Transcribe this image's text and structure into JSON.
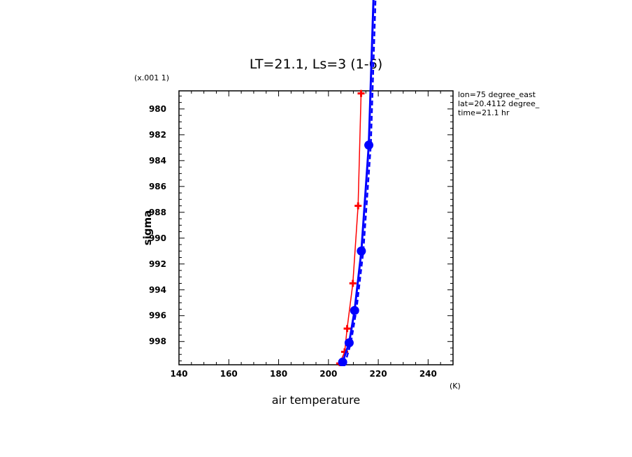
{
  "chart_data": {
    "type": "line",
    "title": "LT=21.1, Ls=3 (1-6)",
    "xlabel": "air temperature",
    "ylabel": "sigma",
    "x_unit": "(K)",
    "y_scale_label": "(x.001 1)",
    "xlim": [
      140,
      250
    ],
    "ylim": [
      999.8,
      978.6
    ],
    "y_inverted": true,
    "x_ticks": [
      140,
      160,
      180,
      200,
      220,
      240
    ],
    "y_ticks": [
      980,
      982,
      984,
      986,
      988,
      990,
      992,
      994,
      996,
      998
    ],
    "annotations": [
      "lon=75 degree_east",
      "lat=20.4112 degree_",
      "time=21.1 hr"
    ],
    "grid": false,
    "series": [
      {
        "color": "#ff0000",
        "line_style": "solid",
        "marker": "plus",
        "x": [
          204.5,
          206.5,
          207.5,
          209.8,
          211.9,
          213.1
        ],
        "y": [
          999.7,
          998.8,
          997.0,
          993.5,
          987.5,
          978.8
        ]
      },
      {
        "color": "#0000ff",
        "line_style": "solid",
        "marker": "circle",
        "x": [
          205.7,
          208.3,
          210.5,
          213.2,
          216.2,
          219.5
        ],
        "y": [
          999.6,
          998.1,
          995.6,
          991.0,
          982.8,
          963.0
        ]
      },
      {
        "color": "#0000ff",
        "line_style": "dashed",
        "marker": "none",
        "x": [
          206.5,
          209.0,
          211.2,
          214.0,
          217.0,
          220.3
        ],
        "y": [
          999.8,
          998.1,
          995.6,
          991.0,
          982.8,
          963.0
        ]
      }
    ]
  }
}
